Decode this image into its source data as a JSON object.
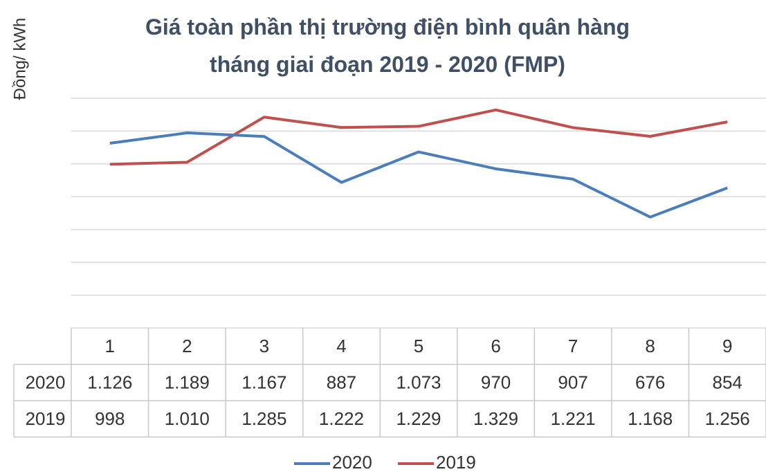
{
  "chart_data": {
    "type": "line",
    "title": "Giá toàn phần thị trường điện bình quân hàng tháng giai đoạn 2019 - 2020 (FMP)",
    "y_axis_label": "Đồng/ kWh",
    "categories": [
      "1",
      "2",
      "3",
      "4",
      "5",
      "6",
      "7",
      "8",
      "9"
    ],
    "series": [
      {
        "name": "2020",
        "color": "#4a7ebb",
        "values": [
          1126,
          1189,
          1167,
          887,
          1073,
          970,
          907,
          676,
          854
        ],
        "value_labels": [
          "1.126",
          "1.189",
          "1.167",
          "887",
          "1.073",
          "970",
          "907",
          "676",
          "854"
        ]
      },
      {
        "name": "2019",
        "color": "#c0504d",
        "values": [
          998,
          1010,
          1285,
          1222,
          1229,
          1329,
          1221,
          1168,
          1256
        ],
        "value_labels": [
          "998",
          "1.010",
          "1.285",
          "1.222",
          "1.229",
          "1.329",
          "1.221",
          "1.168",
          "1.256"
        ]
      }
    ],
    "ylim": [
      0,
      1400
    ],
    "yticks": [
      0,
      200,
      400,
      600,
      800,
      1000,
      1200,
      1400
    ],
    "grid": true
  }
}
